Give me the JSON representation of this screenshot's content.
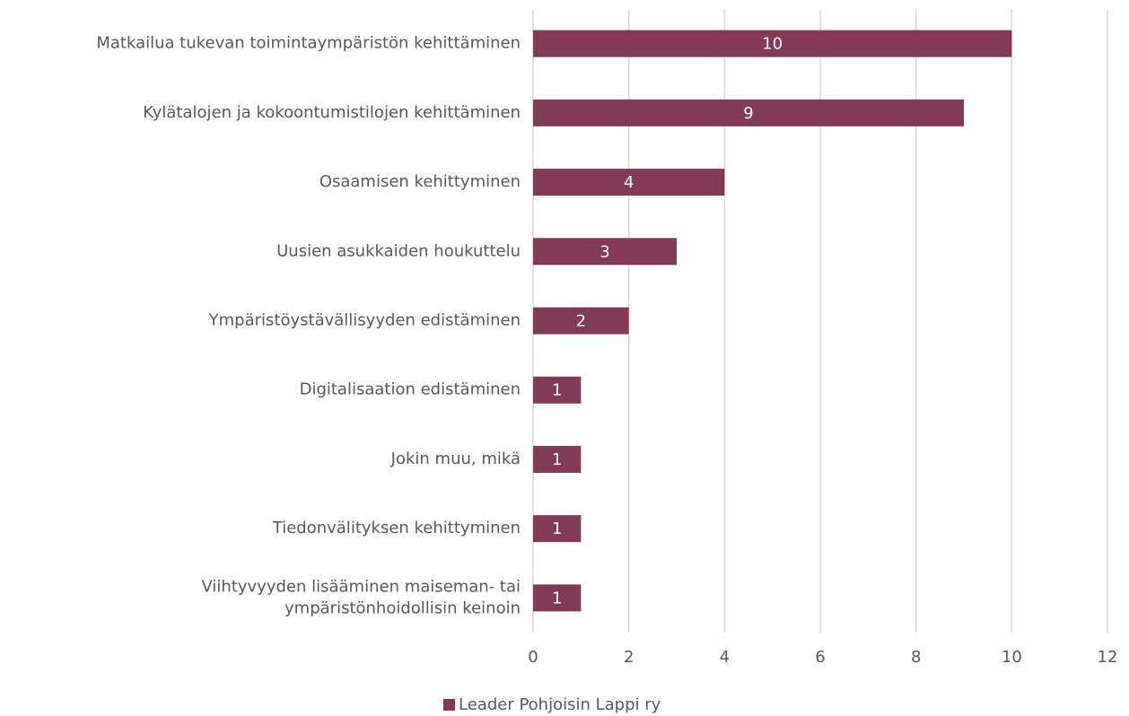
{
  "chart_data": {
    "type": "bar",
    "orientation": "horizontal",
    "categories": [
      "Matkailua tukevan toimintaympäristön kehittäminen",
      "Kylätalojen ja kokoontumistilojen kehittäminen",
      "Osaamisen kehittyminen",
      "Uusien asukkaiden houkuttelu",
      "Ympäristöystävällisyyden edistäminen",
      "Digitalisaation edistäminen",
      "Jokin muu, mikä",
      "Tiedonvälityksen kehittyminen",
      "Viihtyvyyden lisääminen maiseman- tai\nympäristönhoidollisin keinoin"
    ],
    "series": [
      {
        "name": "Leader Pohjoisin Lappi ry",
        "color": "#833a55",
        "values": [
          10,
          9,
          4,
          3,
          2,
          1,
          1,
          1,
          1
        ]
      }
    ],
    "xlim": [
      0,
      12
    ],
    "xticks": [
      0,
      2,
      4,
      6,
      8,
      10,
      12
    ],
    "grid": true,
    "legend": "bottom"
  }
}
